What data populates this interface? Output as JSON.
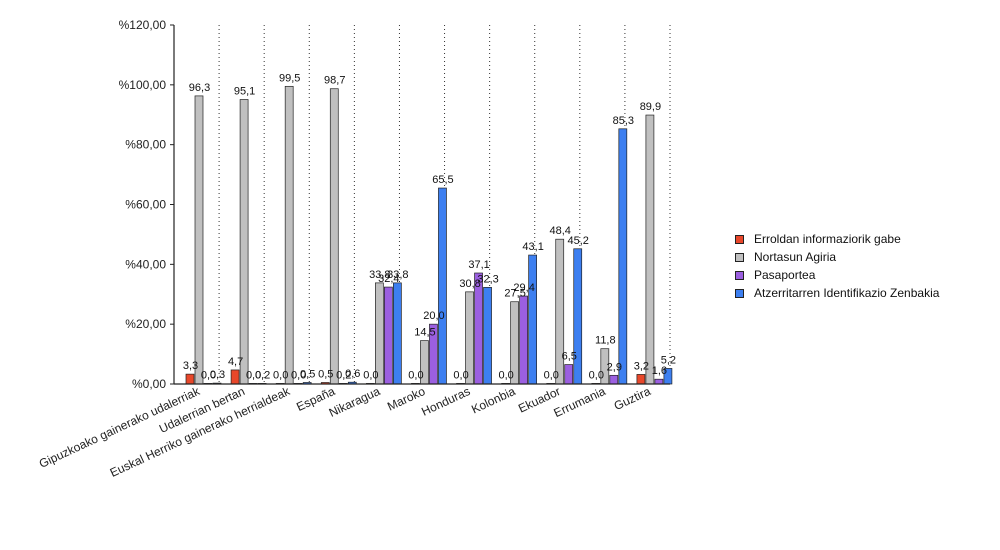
{
  "chart_data": {
    "type": "bar",
    "categories": [
      "Gipuzkoako gainerako udalerriak",
      "Udalerrian bertan",
      "Euskal Herriko gainerako herrialdeak",
      "España",
      "Nikaragua",
      "Maroko",
      "Honduras",
      "Kolonbia",
      "Ekuador",
      "Errumania",
      "Guztira"
    ],
    "series": [
      {
        "name": "Erroldan informaziorik gabe",
        "color": "#e8472a",
        "values": [
          3.3,
          4.7,
          0.0,
          0.5,
          0.0,
          0.0,
          0.0,
          0.0,
          0.0,
          0.0,
          3.2
        ]
      },
      {
        "name": "Nortasun Agiria",
        "color": "#c0c0c0",
        "values": [
          96.3,
          95.1,
          99.5,
          98.7,
          33.8,
          14.5,
          30.8,
          27.5,
          48.4,
          11.8,
          89.9
        ]
      },
      {
        "name": "Pasaportea",
        "color": "#9b5fe0",
        "values": [
          0.0,
          0.0,
          0.0,
          0.2,
          32.4,
          20.0,
          37.1,
          29.4,
          6.5,
          2.9,
          1.6
        ]
      },
      {
        "name": "Atzerritarren Identifikazio Zenbakia",
        "color": "#3d7ff0",
        "values": [
          0.3,
          0.2,
          0.5,
          0.6,
          33.8,
          65.5,
          32.3,
          43.1,
          45.2,
          85.3,
          5.2
        ]
      }
    ],
    "data_labels": [
      [
        "3,3",
        "96,3",
        "0,0",
        "0,3"
      ],
      [
        "4,7",
        "95,1",
        "0,0",
        "0,2"
      ],
      [
        "0,0",
        "99,5",
        "0,0",
        "0,5"
      ],
      [
        "0,5",
        "98,7",
        "0,2",
        "0,6"
      ],
      [
        "0,0",
        "33,8",
        "32,4",
        "33,8"
      ],
      [
        "0,0",
        "14,5",
        "20,0",
        "65,5"
      ],
      [
        "0,0",
        "30,8",
        "37,1",
        "32,3"
      ],
      [
        "0,0",
        "27,5",
        "29,4",
        "43,1"
      ],
      [
        "0,0",
        "48,4",
        "6,5",
        "45,2"
      ],
      [
        "0,0",
        "11,8",
        "2,9",
        "85,3"
      ],
      [
        "3,2",
        "89,9",
        "1,6",
        "5,2"
      ]
    ],
    "y_ticks": [
      {
        "value": 0,
        "label": "%0,00"
      },
      {
        "value": 20,
        "label": "%20,00"
      },
      {
        "value": 40,
        "label": "%40,00"
      },
      {
        "value": 60,
        "label": "%60,00"
      },
      {
        "value": 80,
        "label": "%80,00"
      },
      {
        "value": 100,
        "label": "%100,00"
      },
      {
        "value": 120,
        "label": "%120,00"
      }
    ],
    "ylim": [
      0,
      120
    ],
    "grid": "vertical-dotted",
    "legend_position": "right",
    "title": "",
    "xlabel": "",
    "ylabel": ""
  }
}
